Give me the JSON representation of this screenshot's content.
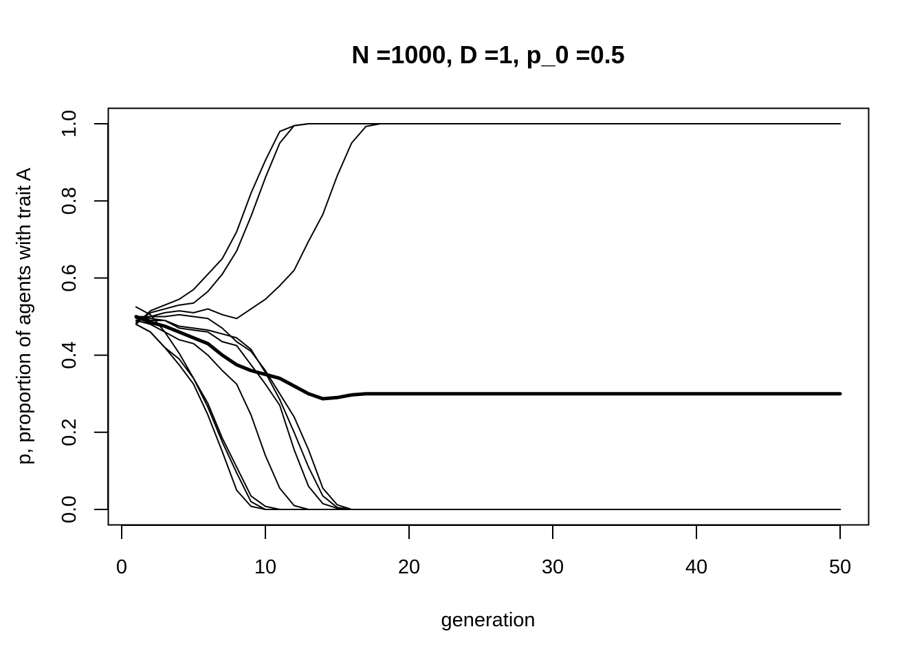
{
  "chart_data": {
    "type": "line",
    "title": "N =1000, D =1, p_0 =0.5",
    "xlabel": "generation",
    "ylabel": "p, proportion of agents with trait A",
    "xlim": [
      0,
      50
    ],
    "ylim": [
      0,
      1
    ],
    "x_ticks": [
      0,
      10,
      20,
      30,
      40,
      50
    ],
    "x_tick_labels": [
      "0",
      "10",
      "20",
      "30",
      "40",
      "50"
    ],
    "y_ticks": [
      0,
      0.2,
      0.4,
      0.6,
      0.8,
      1
    ],
    "y_tick_labels": [
      "0.0",
      "0.2",
      "0.4",
      "0.6",
      "0.8",
      "1.0"
    ],
    "grid": false,
    "line_color": "#000000",
    "x": [
      1,
      2,
      3,
      4,
      5,
      6,
      7,
      8,
      9,
      10,
      11,
      12,
      13,
      14,
      15,
      16,
      17,
      18,
      19,
      20,
      21,
      22,
      23,
      24,
      25,
      26,
      27,
      28,
      29,
      30,
      31,
      32,
      33,
      34,
      35,
      36,
      37,
      38,
      39,
      40,
      41,
      42,
      43,
      44,
      45,
      46,
      47,
      48,
      49,
      50
    ],
    "series": [
      {
        "style": "thin",
        "values": [
          0.48,
          0.515,
          0.53,
          0.545,
          0.57,
          0.61,
          0.65,
          0.72,
          0.82,
          0.905,
          0.98,
          0.995,
          1,
          1,
          1,
          1,
          1,
          1,
          1,
          1,
          1,
          1,
          1,
          1,
          1,
          1,
          1,
          1,
          1,
          1,
          1,
          1,
          1,
          1,
          1,
          1,
          1,
          1,
          1,
          1,
          1,
          1,
          1,
          1,
          1,
          1,
          1,
          1,
          1,
          1
        ]
      },
      {
        "style": "thin",
        "values": [
          0.485,
          0.51,
          0.52,
          0.53,
          0.535,
          0.565,
          0.61,
          0.67,
          0.76,
          0.86,
          0.95,
          0.995,
          1,
          1,
          1,
          1,
          1,
          1,
          1,
          1,
          1,
          1,
          1,
          1,
          1,
          1,
          1,
          1,
          1,
          1,
          1,
          1,
          1,
          1,
          1,
          1,
          1,
          1,
          1,
          1,
          1,
          1,
          1,
          1,
          1,
          1,
          1,
          1,
          1,
          1
        ]
      },
      {
        "style": "thin",
        "values": [
          0.49,
          0.5,
          0.51,
          0.515,
          0.51,
          0.52,
          0.505,
          0.495,
          0.52,
          0.545,
          0.58,
          0.62,
          0.695,
          0.765,
          0.865,
          0.95,
          0.993,
          1,
          1,
          1,
          1,
          1,
          1,
          1,
          1,
          1,
          1,
          1,
          1,
          1,
          1,
          1,
          1,
          1,
          1,
          1,
          1,
          1,
          1,
          1,
          1,
          1,
          1,
          1,
          1,
          1,
          1,
          1,
          1,
          1
        ]
      },
      {
        "style": "thin",
        "values": [
          0.5,
          0.5,
          0.5,
          0.505,
          0.5,
          0.495,
          0.47,
          0.435,
          0.41,
          0.36,
          0.3,
          0.24,
          0.155,
          0.055,
          0.012,
          0,
          0,
          0,
          0,
          0,
          0,
          0,
          0,
          0,
          0,
          0,
          0,
          0,
          0,
          0,
          0,
          0,
          0,
          0,
          0,
          0,
          0,
          0,
          0,
          0,
          0,
          0,
          0,
          0,
          0,
          0,
          0,
          0,
          0,
          0
        ]
      },
      {
        "style": "thin",
        "values": [
          0.495,
          0.495,
          0.49,
          0.475,
          0.47,
          0.465,
          0.455,
          0.445,
          0.415,
          0.355,
          0.285,
          0.2,
          0.11,
          0.035,
          0.005,
          0,
          0,
          0,
          0,
          0,
          0,
          0,
          0,
          0,
          0,
          0,
          0,
          0,
          0,
          0,
          0,
          0,
          0,
          0,
          0,
          0,
          0,
          0,
          0,
          0,
          0,
          0,
          0,
          0,
          0,
          0,
          0,
          0,
          0,
          0
        ]
      },
      {
        "style": "thin",
        "values": [
          0.5,
          0.49,
          0.49,
          0.47,
          0.465,
          0.46,
          0.435,
          0.425,
          0.375,
          0.325,
          0.27,
          0.155,
          0.06,
          0.015,
          0.003,
          0,
          0,
          0,
          0,
          0,
          0,
          0,
          0,
          0,
          0,
          0,
          0,
          0,
          0,
          0,
          0,
          0,
          0,
          0,
          0,
          0,
          0,
          0,
          0,
          0,
          0,
          0,
          0,
          0,
          0,
          0,
          0,
          0,
          0,
          0
        ]
      },
      {
        "style": "thin",
        "values": [
          0.49,
          0.48,
          0.46,
          0.44,
          0.43,
          0.4,
          0.36,
          0.325,
          0.245,
          0.14,
          0.055,
          0.01,
          0,
          0,
          0,
          0,
          0,
          0,
          0,
          0,
          0,
          0,
          0,
          0,
          0,
          0,
          0,
          0,
          0,
          0,
          0,
          0,
          0,
          0,
          0,
          0,
          0,
          0,
          0,
          0,
          0,
          0,
          0,
          0,
          0,
          0,
          0,
          0,
          0,
          0
        ]
      },
      {
        "style": "thin",
        "values": [
          0.525,
          0.505,
          0.46,
          0.405,
          0.34,
          0.275,
          0.185,
          0.11,
          0.035,
          0.008,
          0,
          0,
          0,
          0,
          0,
          0,
          0,
          0,
          0,
          0,
          0,
          0,
          0,
          0,
          0,
          0,
          0,
          0,
          0,
          0,
          0,
          0,
          0,
          0,
          0,
          0,
          0,
          0,
          0,
          0,
          0,
          0,
          0,
          0,
          0,
          0,
          0,
          0,
          0,
          0
        ]
      },
      {
        "style": "thin",
        "values": [
          0.48,
          0.46,
          0.42,
          0.39,
          0.34,
          0.265,
          0.175,
          0.095,
          0.02,
          0,
          0,
          0,
          0,
          0,
          0,
          0,
          0,
          0,
          0,
          0,
          0,
          0,
          0,
          0,
          0,
          0,
          0,
          0,
          0,
          0,
          0,
          0,
          0,
          0,
          0,
          0,
          0,
          0,
          0,
          0,
          0,
          0,
          0,
          0,
          0,
          0,
          0,
          0,
          0,
          0
        ]
      },
      {
        "style": "thin",
        "values": [
          0.48,
          0.46,
          0.42,
          0.375,
          0.325,
          0.245,
          0.15,
          0.05,
          0.008,
          0,
          0,
          0,
          0,
          0,
          0,
          0,
          0,
          0,
          0,
          0,
          0,
          0,
          0,
          0,
          0,
          0,
          0,
          0,
          0,
          0,
          0,
          0,
          0,
          0,
          0,
          0,
          0,
          0,
          0,
          0,
          0,
          0,
          0,
          0,
          0,
          0,
          0,
          0,
          0,
          0
        ]
      },
      {
        "style": "thick",
        "values": [
          0.5,
          0.485,
          0.475,
          0.46,
          0.445,
          0.43,
          0.4,
          0.375,
          0.36,
          0.35,
          0.34,
          0.32,
          0.3,
          0.287,
          0.29,
          0.297,
          0.3,
          0.3,
          0.3,
          0.3,
          0.3,
          0.3,
          0.3,
          0.3,
          0.3,
          0.3,
          0.3,
          0.3,
          0.3,
          0.3,
          0.3,
          0.3,
          0.3,
          0.3,
          0.3,
          0.3,
          0.3,
          0.3,
          0.3,
          0.3,
          0.3,
          0.3,
          0.3,
          0.3,
          0.3,
          0.3,
          0.3,
          0.3,
          0.3,
          0.3
        ]
      }
    ]
  }
}
